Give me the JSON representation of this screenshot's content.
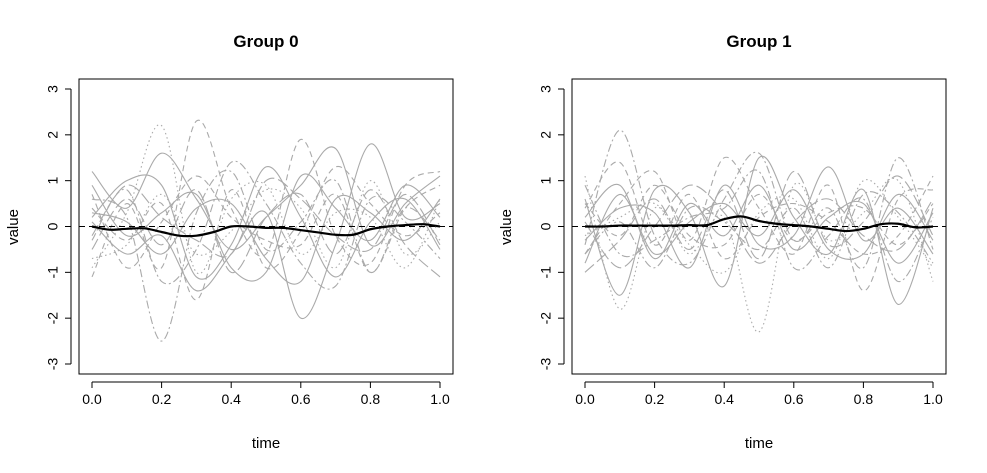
{
  "chart_data": [
    {
      "type": "line",
      "title": "Group 0",
      "xlabel": "time",
      "ylabel": "value",
      "xlim": [
        0,
        1
      ],
      "ylim": [
        -3,
        3
      ],
      "x_ticks": [
        "0.0",
        "0.2",
        "0.4",
        "0.6",
        "0.8",
        "1.0"
      ],
      "y_ticks": [
        "-3",
        "-2",
        "-1",
        "0",
        "1",
        "2",
        "3"
      ],
      "grid": false,
      "reference_line": {
        "y": 0,
        "style": "dashed",
        "color": "#000000"
      },
      "mean_curve": {
        "color": "#000000",
        "x": [
          0,
          0.05,
          0.1,
          0.15,
          0.2,
          0.25,
          0.3,
          0.35,
          0.4,
          0.45,
          0.5,
          0.55,
          0.6,
          0.65,
          0.7,
          0.75,
          0.8,
          0.85,
          0.9,
          0.95,
          1.0
        ],
        "y": [
          0.0,
          -0.07,
          -0.05,
          -0.04,
          -0.12,
          -0.2,
          -0.2,
          -0.12,
          0.0,
          0.0,
          -0.03,
          -0.03,
          -0.08,
          -0.13,
          -0.18,
          -0.18,
          -0.06,
          0.0,
          0.03,
          0.05,
          0.0
        ]
      },
      "individual_curves": {
        "color": "#aaaaaa",
        "x": [
          0,
          0.1,
          0.2,
          0.3,
          0.4,
          0.5,
          0.6,
          0.7,
          0.8,
          0.9,
          1.0
        ],
        "series": [
          {
            "style": "solid",
            "values": [
              1.2,
              0.4,
              1.6,
              0.6,
              -0.5,
              0.2,
              0.9,
              1.7,
              -0.4,
              0.5,
              1.1
            ]
          },
          {
            "style": "solid",
            "values": [
              0.1,
              -0.6,
              -0.2,
              -1.4,
              -0.6,
              0.3,
              -2.0,
              -0.4,
              1.8,
              0.2,
              0.5
            ]
          },
          {
            "style": "dashed",
            "values": [
              -1.1,
              0.5,
              -0.9,
              2.3,
              0.4,
              -0.6,
              1.9,
              -0.2,
              -0.8,
              0.9,
              1.2
            ]
          },
          {
            "style": "dashdot",
            "values": [
              0.6,
              0.2,
              -2.5,
              0.3,
              1.2,
              -0.5,
              0.1,
              1.0,
              -1.0,
              0.4,
              -0.3
            ]
          },
          {
            "style": "dotted",
            "values": [
              -0.9,
              0.3,
              2.2,
              -1.0,
              0.6,
              0.9,
              -0.6,
              0.3,
              0.2,
              -0.9,
              0.6
            ]
          },
          {
            "style": "solid",
            "values": [
              0.2,
              1.0,
              0.9,
              -1.1,
              -0.4,
              1.3,
              0.2,
              -1.1,
              0.1,
              0.6,
              -0.5
            ]
          },
          {
            "style": "dashed",
            "values": [
              0.4,
              -0.3,
              0.5,
              -1.6,
              0.8,
              -0.9,
              -0.1,
              1.3,
              0.5,
              -0.2,
              0.3
            ]
          },
          {
            "style": "longdash",
            "values": [
              -0.5,
              0.6,
              -0.4,
              0.8,
              -1.0,
              0.2,
              0.7,
              -0.6,
              0.8,
              -0.4,
              -1.1
            ]
          },
          {
            "style": "solid",
            "values": [
              0.9,
              -0.2,
              0.3,
              0.7,
              -0.9,
              -1.0,
              1.1,
              0.4,
              -0.3,
              0.9,
              0.2
            ]
          },
          {
            "style": "dashdot",
            "values": [
              -0.3,
              0.8,
              -1.2,
              -0.5,
              1.4,
              0.5,
              -0.8,
              -1.3,
              0.6,
              0.1,
              -0.7
            ]
          },
          {
            "style": "dashed",
            "values": [
              0.7,
              -0.9,
              0.1,
              1.1,
              0.2,
              -0.3,
              -0.4,
              0.7,
              -1.0,
              0.4,
              0.9
            ]
          },
          {
            "style": "dotted",
            "values": [
              -0.7,
              -0.4,
              0.7,
              -0.6,
              -0.1,
              0.8,
              0.4,
              -0.9,
              1.0,
              -0.6,
              0.1
            ]
          },
          {
            "style": "solid",
            "values": [
              0.3,
              0.1,
              -0.6,
              0.4,
              0.5,
              -0.7,
              -1.2,
              0.6,
              0.3,
              -0.3,
              0.6
            ]
          },
          {
            "style": "longdash",
            "values": [
              -0.2,
              0.9,
              0.2,
              -0.3,
              -0.6,
              1.0,
              0.6,
              -0.2,
              -0.5,
              0.7,
              -0.4
            ]
          }
        ]
      }
    },
    {
      "type": "line",
      "title": "Group 1",
      "xlabel": "time",
      "ylabel": "value",
      "xlim": [
        0,
        1
      ],
      "ylim": [
        -3,
        3
      ],
      "x_ticks": [
        "0.0",
        "0.2",
        "0.4",
        "0.6",
        "0.8",
        "1.0"
      ],
      "y_ticks": [
        "-3",
        "-2",
        "-1",
        "0",
        "1",
        "2",
        "3"
      ],
      "grid": false,
      "reference_line": {
        "y": 0,
        "style": "dashed",
        "color": "#000000"
      },
      "mean_curve": {
        "color": "#000000",
        "x": [
          0,
          0.05,
          0.1,
          0.15,
          0.2,
          0.25,
          0.3,
          0.35,
          0.4,
          0.45,
          0.5,
          0.55,
          0.6,
          0.65,
          0.7,
          0.75,
          0.8,
          0.85,
          0.9,
          0.95,
          1.0
        ],
        "y": [
          0.0,
          0.0,
          0.02,
          0.02,
          0.02,
          0.02,
          0.03,
          0.03,
          0.16,
          0.22,
          0.12,
          0.06,
          0.03,
          0.0,
          -0.05,
          -0.1,
          -0.05,
          0.05,
          0.06,
          -0.02,
          0.0
        ]
      },
      "individual_curves": {
        "color": "#aaaaaa",
        "x": [
          0,
          0.1,
          0.2,
          0.3,
          0.4,
          0.5,
          0.6,
          0.7,
          0.8,
          0.9,
          1.0
        ],
        "series": [
          {
            "style": "solid",
            "values": [
              0.6,
              -1.5,
              0.8,
              0.3,
              -1.3,
              1.5,
              0.2,
              -0.6,
              0.8,
              -1.7,
              0.4
            ]
          },
          {
            "style": "dashdot",
            "values": [
              -0.4,
              2.1,
              -0.2,
              -0.8,
              0.6,
              1.6,
              -0.3,
              0.4,
              -0.9,
              1.5,
              -0.5
            ]
          },
          {
            "style": "dotted",
            "values": [
              1.1,
              -1.8,
              0.4,
              -0.6,
              0.2,
              -2.3,
              0.9,
              -0.3,
              0.3,
              1.0,
              -1.2
            ]
          },
          {
            "style": "dashed",
            "values": [
              -0.6,
              0.5,
              1.2,
              -0.3,
              1.5,
              0.4,
              -0.6,
              0.9,
              -1.4,
              0.6,
              0.8
            ]
          },
          {
            "style": "solid",
            "values": [
              0.2,
              0.9,
              -0.7,
              0.5,
              -0.2,
              0.9,
              -0.5,
              0.2,
              0.5,
              -0.8,
              0.3
            ]
          },
          {
            "style": "longdash",
            "values": [
              -1.0,
              -0.3,
              0.6,
              -0.5,
              0.8,
              -0.7,
              1.2,
              -0.4,
              0.1,
              1.1,
              -0.2
            ]
          },
          {
            "style": "dashed",
            "values": [
              0.4,
              1.4,
              -0.4,
              0.7,
              -0.7,
              0.2,
              0.5,
              0.1,
              -0.6,
              -0.2,
              1.1
            ]
          },
          {
            "style": "solid",
            "values": [
              -0.3,
              0.4,
              0.3,
              -0.9,
              0.9,
              -0.4,
              -0.2,
              1.3,
              -0.3,
              0.4,
              -0.6
            ]
          },
          {
            "style": "dashdot",
            "values": [
              0.9,
              -0.6,
              -0.3,
              0.2,
              0.4,
              1.2,
              -0.9,
              -0.2,
              0.6,
              -1.2,
              0.2
            ]
          },
          {
            "style": "dotted",
            "values": [
              -0.2,
              0.2,
              0.5,
              -0.4,
              -1.0,
              0.3,
              0.6,
              -0.7,
              1.0,
              0.2,
              -0.9
            ]
          },
          {
            "style": "longdash",
            "values": [
              0.1,
              -0.9,
              0.0,
              0.9,
              0.3,
              -0.8,
              0.1,
              0.6,
              -0.2,
              -0.5,
              0.6
            ]
          },
          {
            "style": "solid",
            "values": [
              -0.8,
              0.7,
              -0.6,
              0.1,
              0.5,
              -0.2,
              0.8,
              -0.5,
              -0.6,
              0.7,
              -0.3
            ]
          },
          {
            "style": "dashed",
            "values": [
              0.5,
              -0.2,
              0.9,
              -0.2,
              -0.4,
              0.7,
              -0.3,
              0.3,
              0.4,
              -0.4,
              0.5
            ]
          },
          {
            "style": "dashdot",
            "values": [
              -0.6,
              0.1,
              -0.9,
              0.4,
              0.1,
              -0.5,
              0.4,
              -0.9,
              0.7,
              0.3,
              -0.8
            ]
          }
        ]
      }
    }
  ]
}
